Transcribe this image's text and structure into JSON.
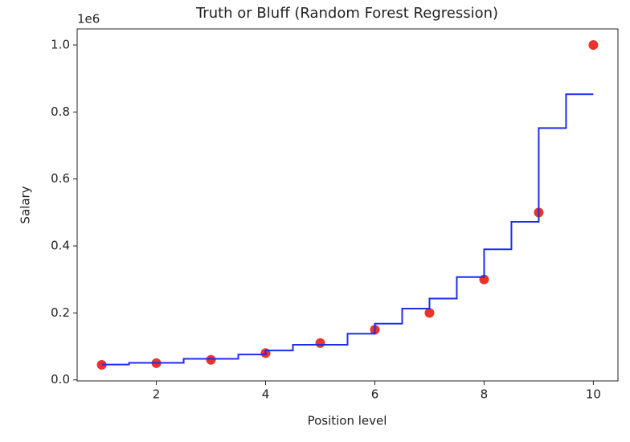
{
  "chart_data": {
    "type": "scatter-and-step",
    "title": "Truth or Bluff (Random Forest Regression)",
    "x_label": "Position level",
    "y_label": "Salary",
    "y_offset_label": "1e6",
    "xlim": [
      0.55,
      10.45
    ],
    "ylim": [
      -0.003,
      1.048
    ],
    "xticks": [
      2,
      4,
      6,
      8,
      10
    ],
    "yticks": [
      {
        "value": 0,
        "label": "0.0"
      },
      0.2,
      0.4,
      0.6,
      0.8,
      {
        "value": 1,
        "label": "1.0"
      }
    ],
    "series": [
      {
        "type": "scatter",
        "color": "#e8342a",
        "x": [
          1,
          2,
          3,
          4,
          5,
          6,
          7,
          8,
          9,
          10
        ],
        "values": [
          0.045,
          0.05,
          0.06,
          0.08,
          0.11,
          0.15,
          0.2,
          0.3,
          0.5,
          1.0
        ]
      },
      {
        "type": "line",
        "color": "#1f2cf0",
        "x": [
          1,
          1.5,
          1.5,
          2.5,
          2.5,
          3.5,
          3.5,
          4,
          4,
          4.5,
          4.5,
          5.5,
          5.5,
          6,
          6,
          6.5,
          6.5,
          7,
          7,
          7.5,
          7.5,
          8,
          8,
          8.5,
          8.5,
          9,
          9,
          9.5,
          9.5,
          10
        ],
        "values": [
          0.046,
          0.046,
          0.051,
          0.051,
          0.063,
          0.063,
          0.076,
          0.076,
          0.088,
          0.088,
          0.105,
          0.105,
          0.138,
          0.138,
          0.168,
          0.168,
          0.213,
          0.213,
          0.243,
          0.243,
          0.307,
          0.307,
          0.39,
          0.39,
          0.472,
          0.472,
          0.752,
          0.752,
          0.853,
          0.853
        ]
      }
    ]
  }
}
